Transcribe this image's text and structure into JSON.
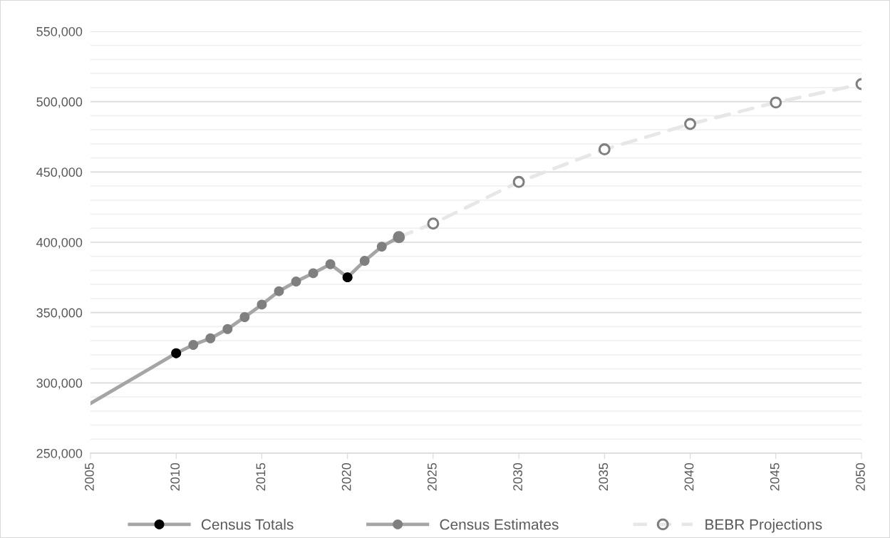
{
  "chart_data": {
    "type": "line",
    "xlim": [
      2005,
      2050
    ],
    "xticks": [
      2005,
      2010,
      2015,
      2020,
      2025,
      2030,
      2035,
      2040,
      2045,
      2050
    ],
    "ylim": [
      250000,
      550000
    ],
    "yticks": [
      {
        "value": 250000,
        "label": "250,000"
      },
      {
        "value": 260000,
        "label": null
      },
      {
        "value": 270000,
        "label": null
      },
      {
        "value": 280000,
        "label": null
      },
      {
        "value": 290000,
        "label": null
      },
      {
        "value": 300000,
        "label": "300,000"
      },
      {
        "value": 310000,
        "label": null
      },
      {
        "value": 320000,
        "label": null
      },
      {
        "value": 330000,
        "label": null
      },
      {
        "value": 340000,
        "label": null
      },
      {
        "value": 350000,
        "label": "350,000"
      },
      {
        "value": 360000,
        "label": null
      },
      {
        "value": 370000,
        "label": null
      },
      {
        "value": 380000,
        "label": null
      },
      {
        "value": 390000,
        "label": null
      },
      {
        "value": 400000,
        "label": "400,000"
      },
      {
        "value": 410000,
        "label": null
      },
      {
        "value": 420000,
        "label": null
      },
      {
        "value": 430000,
        "label": null
      },
      {
        "value": 440000,
        "label": null
      },
      {
        "value": 450000,
        "label": "450,000"
      },
      {
        "value": 460000,
        "label": null
      },
      {
        "value": 470000,
        "label": null
      },
      {
        "value": 480000,
        "label": null
      },
      {
        "value": 490000,
        "label": null
      },
      {
        "value": 500000,
        "label": "500,000"
      },
      {
        "value": 510000,
        "label": null
      },
      {
        "value": 520000,
        "label": null
      },
      {
        "value": 530000,
        "label": null
      },
      {
        "value": 540000,
        "label": null
      },
      {
        "value": 550000,
        "label": "550,000"
      }
    ],
    "grid": "y",
    "legend": "bottom",
    "marker": "circle",
    "series": [
      {
        "name": "BEBR Projections",
        "color": "#e7e7e7",
        "line_style": "dashed",
        "marker": "circle_open",
        "x": [
          2023,
          2025,
          2030,
          2035,
          2040,
          2045,
          2050
        ],
        "values": [
          403700,
          413300,
          442900,
          466100,
          484100,
          499400,
          512500
        ],
        "colors": [
          "#7f7f7f",
          "#7f7f7f",
          "#7f7f7f",
          "#7f7f7f",
          "#7f7f7f",
          "#7f7f7f",
          "#7f7f7f"
        ]
      },
      {
        "name": "Census Estimates",
        "color": "#a5a5a5",
        "line_style": "solid",
        "x": [
          2010,
          2011,
          2012,
          2013,
          2014,
          2015,
          2016,
          2017,
          2018,
          2019,
          2020,
          2021,
          2022,
          2023
        ],
        "values": [
          321100,
          327000,
          331700,
          338300,
          346800,
          355700,
          365200,
          372100,
          378000,
          384400,
          375100,
          386800,
          396900,
          403700
        ],
        "colors": [
          "#7f7f7f",
          "#7f7f7f",
          "#7f7f7f",
          "#7f7f7f",
          "#7f7f7f",
          "#7f7f7f",
          "#7f7f7f",
          "#7f7f7f",
          "#7f7f7f",
          "#7f7f7f",
          "#7f7f7f",
          "#7f7f7f",
          "#7f7f7f",
          "#7f7f7f"
        ]
      },
      {
        "name": "Census Totals",
        "color": "#a5a5a5",
        "line_style": "solid",
        "x": [
          2005,
          2010,
          2015,
          2020
        ],
        "values": [
          285400,
          321100,
          null,
          375100
        ],
        "colors": [
          null,
          "#000000",
          null,
          "#000000"
        ]
      }
    ]
  }
}
